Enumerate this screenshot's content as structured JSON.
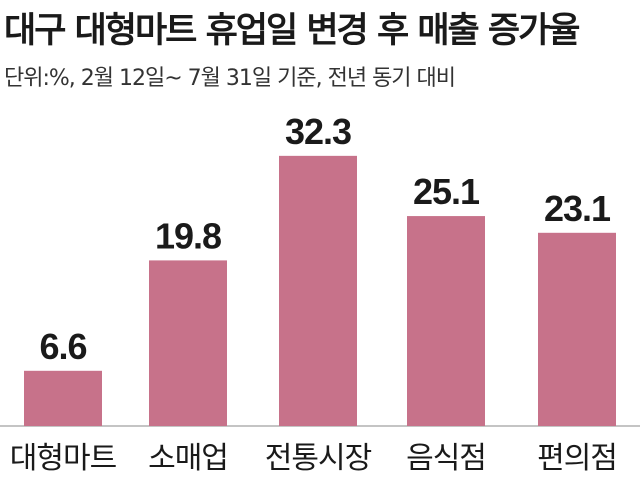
{
  "chart_data": {
    "type": "bar",
    "title": "대구 대형마트 휴업일 변경 후 매출 증가율",
    "subtitle": "단위:%, 2월 12일~ 7월 31일 기준, 전년 동기 대비",
    "categories": [
      "대형마트",
      "소매업",
      "전통시장",
      "음식점",
      "편의점"
    ],
    "values": [
      6.6,
      19.8,
      32.3,
      25.1,
      23.1
    ],
    "value_labels": [
      "6.6",
      "19.8",
      "32.3",
      "25.1",
      "23.1"
    ],
    "ylim": [
      0,
      33
    ],
    "grid": false,
    "bar_color": "#c7728a"
  }
}
